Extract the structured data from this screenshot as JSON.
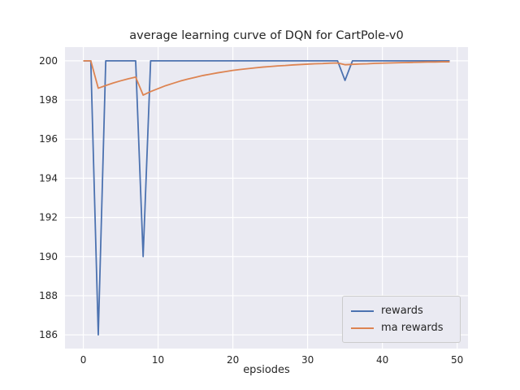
{
  "figure": {
    "background": "#ffffff",
    "plot_background": "#eaeaf2",
    "grid_color": "#ffffff"
  },
  "chart_data": {
    "type": "line",
    "title": "average learning curve of DQN for CartPole-v0",
    "xlabel": "epsiodes",
    "ylabel": "",
    "grid": true,
    "legend_position": "lower right",
    "xlim": [
      -2.45,
      51.45
    ],
    "ylim": [
      185.3,
      200.7
    ],
    "xticks": [
      0,
      10,
      20,
      30,
      40,
      50
    ],
    "yticks": [
      186,
      188,
      190,
      192,
      194,
      196,
      198,
      200
    ],
    "x": [
      0,
      1,
      2,
      3,
      4,
      5,
      6,
      7,
      8,
      9,
      10,
      11,
      12,
      13,
      14,
      15,
      16,
      17,
      18,
      19,
      20,
      21,
      22,
      23,
      24,
      25,
      26,
      27,
      28,
      29,
      30,
      31,
      32,
      33,
      34,
      35,
      36,
      37,
      38,
      39,
      40,
      41,
      42,
      43,
      44,
      45,
      46,
      47,
      48,
      49
    ],
    "series": [
      {
        "name": "rewards",
        "color": "#4c72b0",
        "values": [
          200,
          200,
          186,
          200,
          200,
          200,
          200,
          200,
          190,
          200,
          200,
          200,
          200,
          200,
          200,
          200,
          200,
          200,
          200,
          200,
          200,
          200,
          200,
          200,
          200,
          200,
          200,
          200,
          200,
          200,
          200,
          200,
          200,
          200,
          200,
          199,
          200,
          200,
          200,
          200,
          200,
          200,
          200,
          200,
          200,
          200,
          200,
          200,
          200,
          200
        ]
      },
      {
        "name": "ma rewards",
        "color": "#dd8452",
        "values": [
          200,
          200,
          198.6,
          198.74,
          198.87,
          198.98,
          199.08,
          199.17,
          198.25,
          198.43,
          198.58,
          198.73,
          198.85,
          198.97,
          199.07,
          199.16,
          199.25,
          199.32,
          199.39,
          199.45,
          199.51,
          199.56,
          199.6,
          199.64,
          199.68,
          199.71,
          199.74,
          199.76,
          199.79,
          199.81,
          199.83,
          199.85,
          199.86,
          199.88,
          199.89,
          199.8,
          199.82,
          199.84,
          199.85,
          199.87,
          199.88,
          199.89,
          199.9,
          199.91,
          199.92,
          199.93,
          199.94,
          199.94,
          199.95,
          199.95
        ]
      }
    ]
  }
}
